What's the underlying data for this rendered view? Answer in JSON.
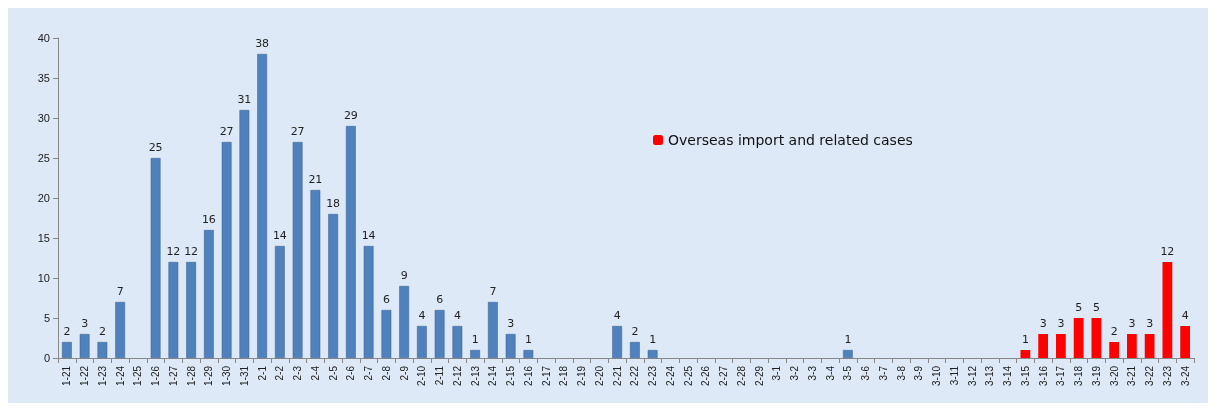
{
  "chart_data": {
    "type": "bar",
    "categories": [
      "1-21",
      "1-22",
      "1-23",
      "1-24",
      "1-25",
      "1-26",
      "1-27",
      "1-28",
      "1-29",
      "1-30",
      "1-31",
      "2-1",
      "2-2",
      "2-3",
      "2-4",
      "2-5",
      "2-6",
      "2-7",
      "2-8",
      "2-9",
      "2-10",
      "2-11",
      "2-12",
      "2-13",
      "2-14",
      "2-15",
      "2-16",
      "2-17",
      "2-18",
      "2-19",
      "2-20",
      "2-21",
      "2-22",
      "2-23",
      "2-24",
      "2-25",
      "2-26",
      "2-27",
      "2-28",
      "2-29",
      "3-1",
      "3-2",
      "3-3",
      "3-4",
      "3-5",
      "3-6",
      "3-7",
      "3-8",
      "3-9",
      "3-10",
      "3-11",
      "3-12",
      "3-13",
      "3-14",
      "3-15",
      "3-16",
      "3-17",
      "3-18",
      "3-19",
      "3-20",
      "3-21",
      "3-22",
      "3-23",
      "3-24"
    ],
    "series": [
      {
        "color": "#4f81bd",
        "values": [
          2,
          3,
          2,
          7,
          null,
          25,
          12,
          12,
          16,
          27,
          31,
          38,
          14,
          27,
          21,
          18,
          29,
          14,
          6,
          9,
          4,
          6,
          4,
          1,
          7,
          3,
          1,
          null,
          null,
          null,
          null,
          4,
          2,
          1,
          null,
          null,
          null,
          null,
          null,
          null,
          null,
          null,
          null,
          null,
          1,
          null,
          null,
          null,
          null,
          null,
          null,
          null,
          null,
          null,
          null,
          null,
          null,
          null,
          null,
          null,
          null,
          null,
          null,
          null
        ]
      },
      {
        "name": "Overseas import and related cases",
        "color": "#ff0000",
        "values": [
          null,
          null,
          null,
          null,
          null,
          null,
          null,
          null,
          null,
          null,
          null,
          null,
          null,
          null,
          null,
          null,
          null,
          null,
          null,
          null,
          null,
          null,
          null,
          null,
          null,
          null,
          null,
          null,
          null,
          null,
          null,
          null,
          null,
          null,
          null,
          null,
          null,
          null,
          null,
          null,
          null,
          null,
          null,
          null,
          null,
          null,
          null,
          null,
          null,
          null,
          null,
          null,
          null,
          null,
          1,
          3,
          3,
          5,
          5,
          2,
          3,
          3,
          12,
          4
        ]
      }
    ],
    "ylim": [
      0,
      40
    ],
    "yticks": [
      0,
      5,
      10,
      15,
      20,
      25,
      30,
      35,
      40
    ],
    "grid": false,
    "legend": "top",
    "data_labels": true
  }
}
